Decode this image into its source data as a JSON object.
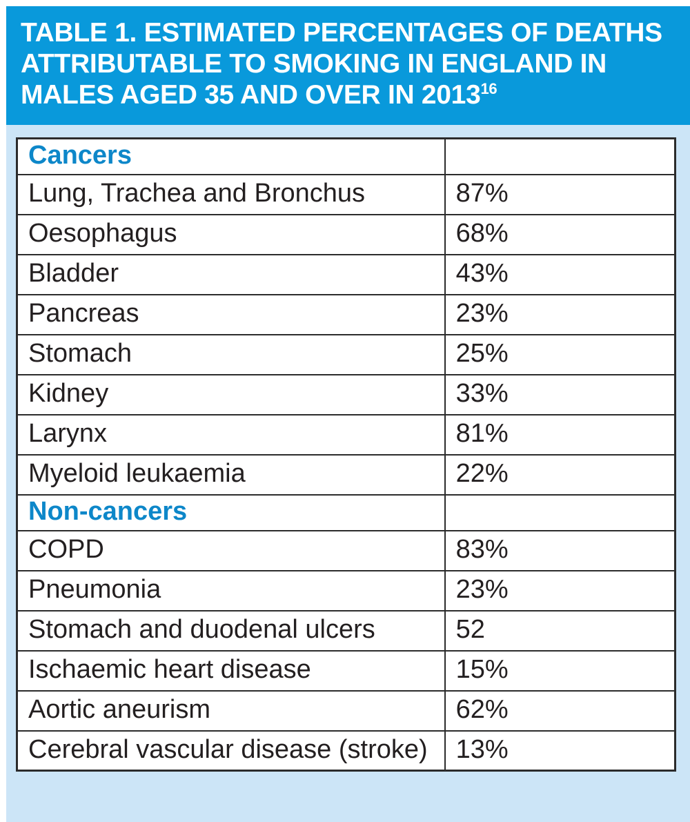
{
  "title": {
    "lines": [
      "TABLE 1. ESTIMATED PERCENTAGES OF DEATHS",
      "ATTRIBUTABLE TO SMOKING IN ENGLAND IN",
      "MALES AGED 35 AND OVER IN 2013"
    ],
    "superscript": "16",
    "full_text": "TABLE 1. ESTIMATED PERCENTAGES OF DEATHS ATTRIBUTABLE TO SMOKING IN ENGLAND IN MALES AGED 35 AND OVER IN 2013"
  },
  "colors": {
    "banner_background": "#0999DB",
    "page_background": "#CCE5F7",
    "title_text": "#FFFFFF",
    "section_heading_text": "#0D87C9",
    "table_background": "#FFFFFF",
    "table_border": "#2B2B2B",
    "body_text": "#231F20"
  },
  "table": {
    "rows": [
      {
        "label": "Cancers",
        "value": "",
        "is_section": true
      },
      {
        "label": "Lung, Trachea and Bronchus",
        "value": "87%",
        "is_section": false
      },
      {
        "label": "Oesophagus",
        "value": "68%",
        "is_section": false
      },
      {
        "label": "Bladder",
        "value": "43%",
        "is_section": false
      },
      {
        "label": "Pancreas",
        "value": "23%",
        "is_section": false
      },
      {
        "label": "Stomach",
        "value": "25%",
        "is_section": false
      },
      {
        "label": "Kidney",
        "value": "33%",
        "is_section": false
      },
      {
        "label": "Larynx",
        "value": "81%",
        "is_section": false
      },
      {
        "label": "Myeloid leukaemia",
        "value": "22%",
        "is_section": false
      },
      {
        "label": "Non-cancers",
        "value": "",
        "is_section": true
      },
      {
        "label": "COPD",
        "value": "83%",
        "is_section": false
      },
      {
        "label": "Pneumonia",
        "value": "23%",
        "is_section": false
      },
      {
        "label": "Stomach and duodenal ulcers",
        "value": "52",
        "is_section": false
      },
      {
        "label": "Ischaemic heart disease",
        "value": "15%",
        "is_section": false
      },
      {
        "label": "Aortic aneurism",
        "value": "62%",
        "is_section": false
      },
      {
        "label": "Cerebral vascular disease (stroke)",
        "value": "13%",
        "is_section": false
      }
    ]
  },
  "chart_data": {
    "type": "table",
    "title": "TABLE 1. ESTIMATED PERCENTAGES OF DEATHS ATTRIBUTABLE TO SMOKING IN ENGLAND IN MALES AGED 35 AND OVER IN 2013",
    "title_reference": "16",
    "sections": [
      {
        "heading": "Cancers",
        "rows": [
          {
            "label": "Lung, Trachea and Bronchus",
            "value_text": "87%",
            "value": 87
          },
          {
            "label": "Oesophagus",
            "value_text": "68%",
            "value": 68
          },
          {
            "label": "Bladder",
            "value_text": "43%",
            "value": 43
          },
          {
            "label": "Pancreas",
            "value_text": "23%",
            "value": 23
          },
          {
            "label": "Stomach",
            "value_text": "25%",
            "value": 25
          },
          {
            "label": "Kidney",
            "value_text": "33%",
            "value": 33
          },
          {
            "label": "Larynx",
            "value_text": "81%",
            "value": 81
          },
          {
            "label": "Myeloid leukaemia",
            "value_text": "22%",
            "value": 22
          }
        ]
      },
      {
        "heading": "Non-cancers",
        "rows": [
          {
            "label": "COPD",
            "value_text": "83%",
            "value": 83
          },
          {
            "label": "Pneumonia",
            "value_text": "23%",
            "value": 23
          },
          {
            "label": "Stomach and duodenal ulcers",
            "value_text": "52",
            "value": 52
          },
          {
            "label": "Ischaemic heart disease",
            "value_text": "15%",
            "value": 15
          },
          {
            "label": "Aortic aneurism",
            "value_text": "62%",
            "value": 62
          },
          {
            "label": "Cerebral vascular disease (stroke)",
            "value_text": "13%",
            "value": 13
          }
        ]
      }
    ]
  }
}
